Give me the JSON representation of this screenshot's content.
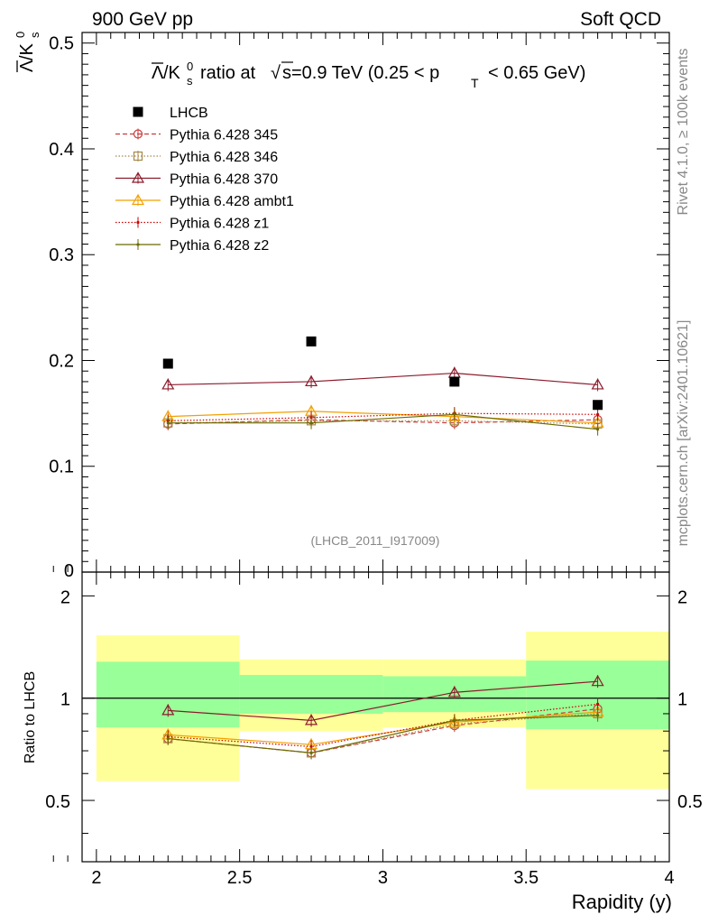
{
  "header": {
    "left": "900 GeV pp",
    "right": "Soft QCD"
  },
  "side": {
    "rivet": "Rivet 4.1.0, ≥ 100k events",
    "mcplots": "mcplots.cern.ch [arXiv:2401.10621]"
  },
  "chart_data": {
    "type": "scatter",
    "title": "Λ̄/K⁰s ratio at √s=0.9 TeV (0.25 < pT < 0.65 GeV)",
    "title_parts": {
      "ratio_label": "ratio at",
      "sqrt_s": "s=0.9 TeV (0.25 < p",
      "pt_tail": "< 0.65 GeV)",
      "sub_T": "T"
    },
    "ylabel_main": "Λ̄/K⁰s",
    "ylabel_ratio": "Ratio to LHCB",
    "xlabel": "Rapidity (y)",
    "analysis_id": "(LHCB_2011_I917009)",
    "xlim": [
      1.95,
      4.0
    ],
    "ylim_main": [
      0,
      0.51
    ],
    "ylim_ratio": [
      0.33,
      2.35
    ],
    "x_ticks": [
      "2",
      "2.5",
      "3",
      "3.5",
      "4"
    ],
    "y_ticks_main": [
      "0.1",
      "0.2",
      "0.3",
      "0.4",
      "0.5"
    ],
    "y_tick_zero": "0",
    "y_ticks_ratio": [
      "0.5",
      "1",
      "2"
    ],
    "bins": [
      [
        2.0,
        2.5
      ],
      [
        2.5,
        3.0
      ],
      [
        3.0,
        3.5
      ],
      [
        3.5,
        4.0
      ]
    ],
    "x": [
      2.25,
      2.75,
      3.25,
      3.75
    ],
    "data": {
      "name": "LHCB",
      "values": [
        0.197,
        0.218,
        0.18,
        0.158
      ],
      "band_inner": [
        [
          0.82,
          1.28
        ],
        [
          0.9,
          1.17
        ],
        [
          0.91,
          1.16
        ],
        [
          0.81,
          1.29
        ]
      ],
      "band_outer": [
        [
          0.57,
          1.53
        ],
        [
          0.8,
          1.3
        ],
        [
          0.82,
          1.3
        ],
        [
          0.54,
          1.57
        ]
      ]
    },
    "series": [
      {
        "name": "Pythia 6.428 345",
        "color": "#cc3b3b",
        "dash": "5,3",
        "marker": "circle",
        "values": [
          0.14,
          0.144,
          0.141,
          0.144
        ],
        "ratio": [
          0.76,
          0.69,
          0.83,
          0.93
        ]
      },
      {
        "name": "Pythia 6.428 346",
        "color": "#a6894a",
        "dash": "1.5,2",
        "marker": "square",
        "values": [
          0.141,
          0.143,
          0.143,
          0.14
        ],
        "ratio": [
          0.76,
          0.69,
          0.84,
          0.9
        ]
      },
      {
        "name": "Pythia 6.428 370",
        "color": "#8b1a2b",
        "dash": "",
        "marker": "triangle",
        "values": [
          0.177,
          0.18,
          0.188,
          0.177
        ],
        "ratio": [
          0.92,
          0.86,
          1.04,
          1.12
        ]
      },
      {
        "name": "Pythia 6.428 ambt1",
        "color": "#f2a000",
        "dash": "",
        "marker": "triangle",
        "values": [
          0.147,
          0.152,
          0.147,
          0.141
        ],
        "ratio": [
          0.78,
          0.73,
          0.85,
          0.91
        ]
      },
      {
        "name": "Pythia 6.428 z1",
        "color": "#cc0000",
        "dash": "1.5,2",
        "marker": "dot",
        "values": [
          0.143,
          0.146,
          0.15,
          0.149
        ],
        "ratio": [
          0.77,
          0.72,
          0.86,
          0.96
        ]
      },
      {
        "name": "Pythia 6.428 z2",
        "color": "#6b6b00",
        "dash": "",
        "marker": "dot",
        "values": [
          0.141,
          0.141,
          0.149,
          0.135
        ],
        "ratio": [
          0.76,
          0.69,
          0.86,
          0.89
        ]
      }
    ],
    "legend_position": "top-left"
  }
}
